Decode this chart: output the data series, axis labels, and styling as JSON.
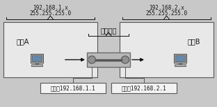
{
  "bg_color": "#c8c8c8",
  "fig_bg": "#c8c8c8",
  "left_ip": "192.168.1.x",
  "left_mask": "255.255.255.0",
  "right_ip": "192.168.2.x",
  "right_mask": "255.255.255.0",
  "left_label": "网络A",
  "right_label": "网络B",
  "router_label": "路由设备",
  "left_gw_label": "网关：192.168.1.1",
  "right_gw_label": "网关：192.168.2.1",
  "box_facecolor": "#e8e8e8",
  "box_edge": "#555555",
  "gw_box_color": "#f2f2f2",
  "router_face": "#b8b8b8",
  "router_edge": "#666666",
  "arrow_color": "#111111",
  "text_color": "#111111",
  "font_size_ip": 5.5,
  "font_size_label": 7.0,
  "font_size_gw": 5.5
}
